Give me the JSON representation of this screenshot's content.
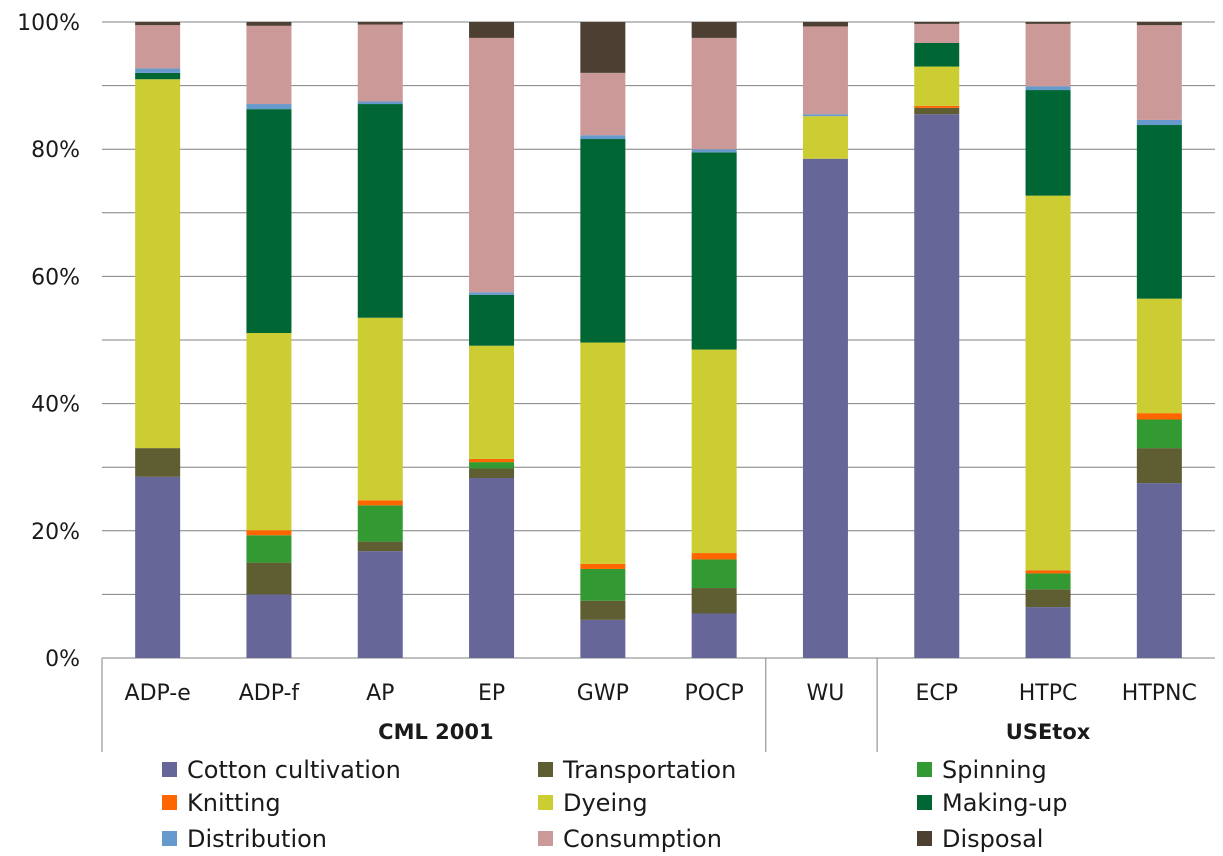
{
  "chart_data": {
    "type": "bar",
    "stacked": true,
    "percent_stacked": true,
    "categories": [
      "ADP-e",
      "ADP-f",
      "AP",
      "EP",
      "GWP",
      "POCP",
      "WU",
      "ECP",
      "HTPC",
      "HTPNC"
    ],
    "groups": [
      {
        "label": "CML 2001",
        "categories": [
          "ADP-e",
          "ADP-f",
          "AP",
          "EP",
          "GWP",
          "POCP"
        ]
      },
      {
        "label": "",
        "categories": [
          "WU"
        ]
      },
      {
        "label": "USEtox",
        "categories": [
          "ECP",
          "HTPC",
          "HTPNC"
        ]
      }
    ],
    "yticks": [
      "0%",
      "20%",
      "40%",
      "60%",
      "80%",
      "100%"
    ],
    "ylim": [
      0,
      100
    ],
    "grid": true,
    "legend_position": "bottom",
    "series": [
      {
        "name": "Cotton cultivation",
        "color": "#666699",
        "values": [
          28.5,
          10,
          16.8,
          28.3,
          6,
          7,
          78.5,
          85.5,
          8,
          27.5
        ]
      },
      {
        "name": "Transportation",
        "color": "#5e5e32",
        "values": [
          4.5,
          5,
          1.5,
          1.5,
          3,
          4,
          0,
          1,
          2.8,
          5.5
        ]
      },
      {
        "name": "Spinning",
        "color": "#339933",
        "values": [
          0,
          4.3,
          5.7,
          1,
          5,
          4.5,
          0,
          0,
          2.5,
          4.5
        ]
      },
      {
        "name": "Knitting",
        "color": "#ff6600",
        "values": [
          0,
          0.8,
          0.8,
          0.5,
          0.8,
          1,
          0,
          0.3,
          0.5,
          1
        ]
      },
      {
        "name": "Dyeing",
        "color": "#cccc33",
        "values": [
          58,
          31,
          28.7,
          17.8,
          34.8,
          32,
          6.7,
          6.2,
          58.9,
          18
        ]
      },
      {
        "name": "Making-up",
        "color": "#006633",
        "values": [
          1,
          35.2,
          33.6,
          8,
          32,
          31,
          0,
          3.7,
          16.6,
          27.3
        ]
      },
      {
        "name": "Distribution",
        "color": "#6699cc",
        "values": [
          0.7,
          0.8,
          0.4,
          0.4,
          0.6,
          0.5,
          0.3,
          0,
          0.6,
          0.8
        ]
      },
      {
        "name": "Consumption",
        "color": "#cc9999",
        "values": [
          6.8,
          12.3,
          12.1,
          40,
          9.8,
          17.5,
          13.8,
          3,
          9.8,
          14.9
        ]
      },
      {
        "name": "Disposal",
        "color": "#4d4033",
        "values": [
          0.5,
          0.6,
          0.4,
          2.5,
          8,
          2.5,
          0.7,
          0.3,
          0.3,
          0.5
        ]
      }
    ]
  }
}
